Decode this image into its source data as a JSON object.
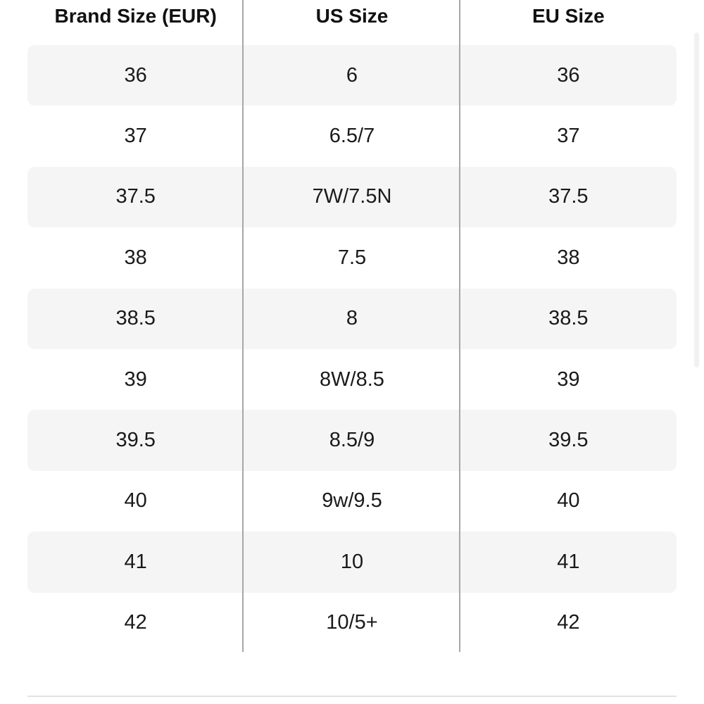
{
  "table": {
    "headers": [
      "Brand Size (EUR)",
      "US Size",
      "EU Size"
    ],
    "rows": [
      [
        "36",
        "6",
        "36"
      ],
      [
        "37",
        "6.5/7",
        "37"
      ],
      [
        "37.5",
        "7W/7.5N",
        "37.5"
      ],
      [
        "38",
        "7.5",
        "38"
      ],
      [
        "38.5",
        "8",
        "38.5"
      ],
      [
        "39",
        "8W/8.5",
        "39"
      ],
      [
        "39.5",
        "8.5/9",
        "39.5"
      ],
      [
        "40",
        "9w/9.5",
        "40"
      ],
      [
        "41",
        "10",
        "41"
      ],
      [
        "42",
        "10/5+",
        "42"
      ]
    ]
  },
  "colors": {
    "row_shade": "#f5f5f5",
    "divider": "#a7a7a7",
    "text": "#111111"
  }
}
